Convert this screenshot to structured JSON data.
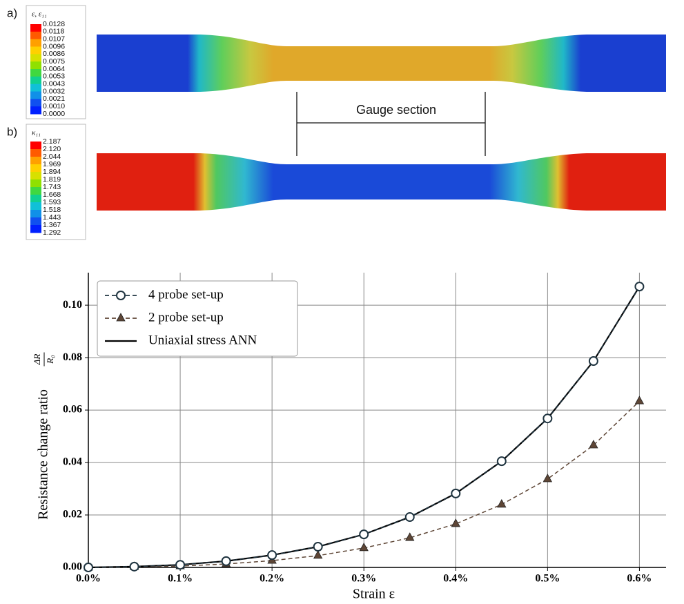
{
  "panels": [
    {
      "tag": "a)",
      "legend_title": "ε, ε₁₁",
      "legend_values": [
        "0.0128",
        "0.0118",
        "0.0107",
        "0.0096",
        "0.0086",
        "0.0075",
        "0.0064",
        "0.0053",
        "0.0043",
        "0.0032",
        "0.0021",
        "0.0010",
        "0.0000"
      ]
    },
    {
      "tag": "b)",
      "legend_title": "κ₁₁",
      "legend_values": [
        "2.187",
        "2.120",
        "2.044",
        "1.969",
        "1.894",
        "1.819",
        "1.743",
        "1.668",
        "1.593",
        "1.518",
        "1.443",
        "1.367",
        "1.292"
      ]
    }
  ],
  "gauge_label": "Gauge section",
  "chart_data": {
    "type": "line",
    "xlabel": "Strain ε",
    "ylabel": "Resistance change ratio",
    "ylabel_fraction": {
      "numerator": "ΔR",
      "denominator": "R₀"
    },
    "x": [
      0,
      0.05,
      0.1,
      0.15,
      0.2,
      0.25,
      0.3,
      0.35,
      0.4,
      0.45,
      0.5,
      0.55,
      0.6
    ],
    "series": [
      {
        "name": "4 probe set-up",
        "color": "#1f3440",
        "marker": "circle",
        "dashed": true,
        "values": [
          0,
          0.0003,
          0.001,
          0.0024,
          0.0047,
          0.0079,
          0.0126,
          0.0192,
          0.0282,
          0.0405,
          0.0568,
          0.0787,
          0.1071
        ]
      },
      {
        "name": "2 probe set-up",
        "color": "#5e4636",
        "marker": "triangle",
        "dashed": true,
        "values": [
          0,
          0.0002,
          0.0005,
          0.0013,
          0.0026,
          0.0045,
          0.0074,
          0.0113,
          0.0166,
          0.024,
          0.0337,
          0.0466,
          0.0634
        ]
      },
      {
        "name": "Uniaxial stress ANN",
        "color": "#000000",
        "marker": null,
        "dashed": false,
        "values": [
          0,
          0.0003,
          0.001,
          0.0024,
          0.0047,
          0.0079,
          0.0126,
          0.0192,
          0.0282,
          0.0405,
          0.0568,
          0.0787,
          0.1071
        ]
      }
    ],
    "xlim": [
      0,
      0.629
    ],
    "ylim": [
      0,
      0.1124
    ],
    "xticks": [
      {
        "value": 0,
        "label": "0.0%"
      },
      {
        "value": 0.1,
        "label": "0.1%"
      },
      {
        "value": 0.2,
        "label": "0.2%"
      },
      {
        "value": 0.3,
        "label": "0.3%"
      },
      {
        "value": 0.4,
        "label": "0.4%"
      },
      {
        "value": 0.5,
        "label": "0.5%"
      },
      {
        "value": 0.6,
        "label": "0.6%"
      }
    ],
    "yticks": [
      {
        "value": 0,
        "label": "0.00"
      },
      {
        "value": 0.02,
        "label": "0.02"
      },
      {
        "value": 0.04,
        "label": "0.04"
      },
      {
        "value": 0.06,
        "label": "0.06"
      },
      {
        "value": 0.08,
        "label": "0.08"
      },
      {
        "value": 0.1,
        "label": "0.10"
      }
    ],
    "grid": true,
    "legend_loc": "upper left"
  }
}
